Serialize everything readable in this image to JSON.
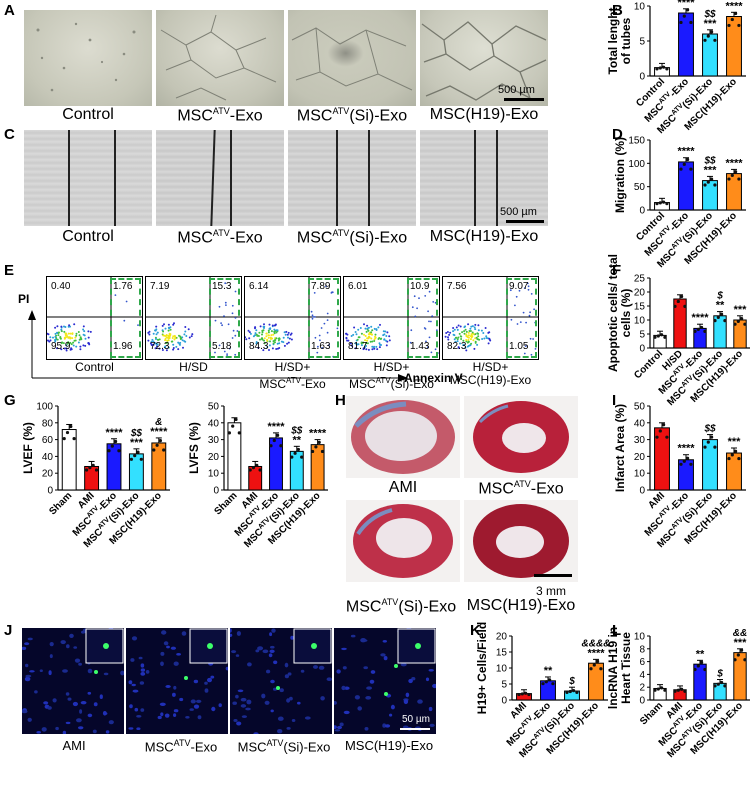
{
  "panels": {
    "A": {
      "letter": "A",
      "captions": [
        {
          "base": "Control",
          "sup": "",
          "tail": ""
        },
        {
          "base": "MSC",
          "sup": "ATV",
          "tail": "-Exo"
        },
        {
          "base": "MSC",
          "sup": "ATV",
          "tail": "(Si)-Exo"
        },
        {
          "base": "MSC(H19)-Exo",
          "sup": "",
          "tail": ""
        }
      ],
      "scalebar": "500 µm"
    },
    "C": {
      "letter": "C",
      "captions": [
        {
          "base": "Control",
          "sup": "",
          "tail": ""
        },
        {
          "base": "MSC",
          "sup": "ATV",
          "tail": "-Exo"
        },
        {
          "base": "MSC",
          "sup": "ATV",
          "tail": "(Si)-Exo"
        },
        {
          "base": "MSC(H19)-Exo",
          "sup": "",
          "tail": ""
        }
      ],
      "scalebar": "500 µm"
    },
    "E": {
      "letter": "E",
      "yaxis": "PI",
      "xaxis": "Annexin V",
      "plots": [
        {
          "ul": "0.40",
          "ur": "1.76",
          "ll": "95.9",
          "lr": "1.96"
        },
        {
          "ul": "7.19",
          "ur": "15.3",
          "ll": "72.3",
          "lr": "5.18"
        },
        {
          "ul": "6.14",
          "ur": "7.89",
          "ll": "84.3",
          "lr": "1.63"
        },
        {
          "ul": "6.01",
          "ur": "10.9",
          "ll": "81.7",
          "lr": "1.43"
        },
        {
          "ul": "7.56",
          "ur": "9.07",
          "ll": "82.3",
          "lr": "1.05"
        }
      ],
      "captions": [
        {
          "l1": "Control",
          "l2base": "",
          "l2sup": "",
          "l2tail": ""
        },
        {
          "l1": "H/SD",
          "l2base": "",
          "l2sup": "",
          "l2tail": ""
        },
        {
          "l1": "H/SD+",
          "l2base": "MSC",
          "l2sup": "ATV",
          "l2tail": "-Exo"
        },
        {
          "l1": "H/SD+",
          "l2base": "MSC",
          "l2sup": "ATV",
          "l2tail": "(Si)-Exo"
        },
        {
          "l1": "H/SD+",
          "l2base": "MSC(H19)-Exo",
          "l2sup": "",
          "l2tail": ""
        }
      ]
    },
    "H": {
      "letter": "H",
      "captions": [
        {
          "base": "AMI",
          "sup": "",
          "tail": ""
        },
        {
          "base": "MSC",
          "sup": "ATV",
          "tail": "-Exo"
        },
        {
          "base": "MSC",
          "sup": "ATV",
          "tail": "(Si)-Exo"
        },
        {
          "base": "MSC(H19)-Exo",
          "sup": "",
          "tail": ""
        }
      ],
      "scalebar": "3 mm"
    },
    "J": {
      "letter": "J",
      "captions": [
        {
          "base": "AMI",
          "sup": "",
          "tail": ""
        },
        {
          "base": "MSC",
          "sup": "ATV",
          "tail": "-Exo"
        },
        {
          "base": "MSC",
          "sup": "ATV",
          "tail": "(Si)-Exo"
        },
        {
          "base": "MSC(H19)-Exo",
          "sup": "",
          "tail": ""
        }
      ],
      "scalebar": "50 µm"
    }
  },
  "chart_data": [
    {
      "id": "B",
      "type": "bar",
      "ylabel": "Total lenght of tubes",
      "ylim": [
        0,
        10
      ],
      "yticks": [
        0,
        5,
        10
      ],
      "categories": [
        "Control",
        "MSC^ATV-Exo",
        "MSC^ATV(Si)-Exo",
        "MSC(H19)-Exo"
      ],
      "values": [
        1.2,
        9.0,
        6.0,
        8.5
      ],
      "colors": [
        "#ffffff",
        "#1a1aff",
        "#33e0ff",
        "#ff8c1a"
      ],
      "annotations": [
        "",
        "****",
        "$$\n***",
        "&\n****"
      ]
    },
    {
      "id": "D",
      "type": "bar",
      "ylabel": "Migration (%)",
      "ylim": [
        0,
        150
      ],
      "yticks": [
        0,
        50,
        100,
        150
      ],
      "categories": [
        "Control",
        "MSC^ATV-Exo",
        "MSC^ATV(Si)-Exo",
        "MSC(H19)-Exo"
      ],
      "values": [
        16,
        103,
        63,
        78
      ],
      "colors": [
        "#ffffff",
        "#1a1aff",
        "#33e0ff",
        "#ff8c1a"
      ],
      "annotations": [
        "",
        "****",
        "$$\n***",
        "****"
      ]
    },
    {
      "id": "F",
      "type": "bar",
      "ylabel": "Apoptotic cells/ total cells (%)",
      "ylim": [
        0,
        25
      ],
      "yticks": [
        0,
        5,
        10,
        15,
        20,
        25
      ],
      "categories": [
        "Control",
        "H/SD",
        "MSC^ATV-Exo",
        "MSC^ATV(Si)-Exo",
        "MSC(H19)-Exo"
      ],
      "values": [
        4.5,
        17.5,
        7.0,
        11.5,
        10.0
      ],
      "colors": [
        "#ffffff",
        "#ee1111",
        "#1a1aff",
        "#33e0ff",
        "#ff8c1a"
      ],
      "annotations": [
        "",
        "",
        "****",
        "$\n**",
        "***"
      ]
    },
    {
      "id": "G1",
      "type": "bar",
      "ylabel": "LVEF (%)",
      "ylim": [
        0,
        100
      ],
      "yticks": [
        0,
        20,
        40,
        60,
        80,
        100
      ],
      "categories": [
        "Sham",
        "AMI",
        "MSC^ATV-Exo",
        "MSC^ATV(Si)-Exo",
        "MSC(H19)-Exo"
      ],
      "values": [
        72,
        28,
        55,
        43,
        56
      ],
      "colors": [
        "#ffffff",
        "#ee1111",
        "#1a1aff",
        "#33e0ff",
        "#ff8c1a"
      ],
      "annotations": [
        "",
        "",
        "****",
        "$$\n***",
        "&\n****"
      ]
    },
    {
      "id": "G2",
      "type": "bar",
      "ylabel": "LVFS (%)",
      "ylim": [
        0,
        50
      ],
      "yticks": [
        0,
        10,
        20,
        30,
        40,
        50
      ],
      "categories": [
        "Sham",
        "AMI",
        "MSC^ATV-Exo",
        "MSC^ATV(Si)-Exo",
        "MSC(H19)-Exo"
      ],
      "values": [
        40,
        14,
        31,
        23,
        27
      ],
      "colors": [
        "#ffffff",
        "#ee1111",
        "#1a1aff",
        "#33e0ff",
        "#ff8c1a"
      ],
      "annotations": [
        "",
        "",
        "****",
        "$$\n**",
        "****"
      ]
    },
    {
      "id": "I",
      "type": "bar",
      "ylabel": "Infarct Area (%)",
      "ylim": [
        0,
        50
      ],
      "yticks": [
        0,
        10,
        20,
        30,
        40,
        50
      ],
      "categories": [
        "AMI",
        "MSC^ATV-Exo",
        "MSC^ATV(Si)-Exo",
        "MSC(H19)-Exo"
      ],
      "values": [
        37,
        18,
        30,
        22
      ],
      "colors": [
        "#ee1111",
        "#1a1aff",
        "#33e0ff",
        "#ff8c1a"
      ],
      "annotations": [
        "",
        "****",
        "$$",
        "***"
      ]
    },
    {
      "id": "K",
      "type": "bar",
      "ylabel": "H19+ Cells/Field",
      "ylim": [
        0,
        20
      ],
      "yticks": [
        0,
        5,
        10,
        15,
        20
      ],
      "categories": [
        "AMI",
        "MSC^ATV-Exo",
        "MSC^ATV(Si)-Exo",
        "MSC(H19)-Exo"
      ],
      "values": [
        2,
        6,
        2.8,
        11.5
      ],
      "colors": [
        "#ee1111",
        "#1a1aff",
        "#33e0ff",
        "#ff8c1a"
      ],
      "annotations": [
        "",
        "**",
        "$",
        "&&&&\n****"
      ]
    },
    {
      "id": "L",
      "type": "bar",
      "ylabel": "lncRNA H19 in Heart Tissue",
      "ylim": [
        0,
        10
      ],
      "yticks": [
        0,
        2,
        4,
        6,
        8,
        10
      ],
      "categories": [
        "Sham",
        "AMI",
        "MSC^ATV-Exo",
        "MSC^ATV(Si)-Exo",
        "MSC(H19)-Exo"
      ],
      "values": [
        1.8,
        1.6,
        5.6,
        2.6,
        7.4
      ],
      "colors": [
        "#ffffff",
        "#ee1111",
        "#1a1aff",
        "#33e0ff",
        "#ff8c1a"
      ],
      "annotations": [
        "",
        "",
        "**",
        "$",
        "&&\n***"
      ]
    }
  ],
  "chart_letters": {
    "B": "B",
    "D": "D",
    "F": "F",
    "G": "G",
    "I": "I",
    "K": "K",
    "L": "L"
  }
}
